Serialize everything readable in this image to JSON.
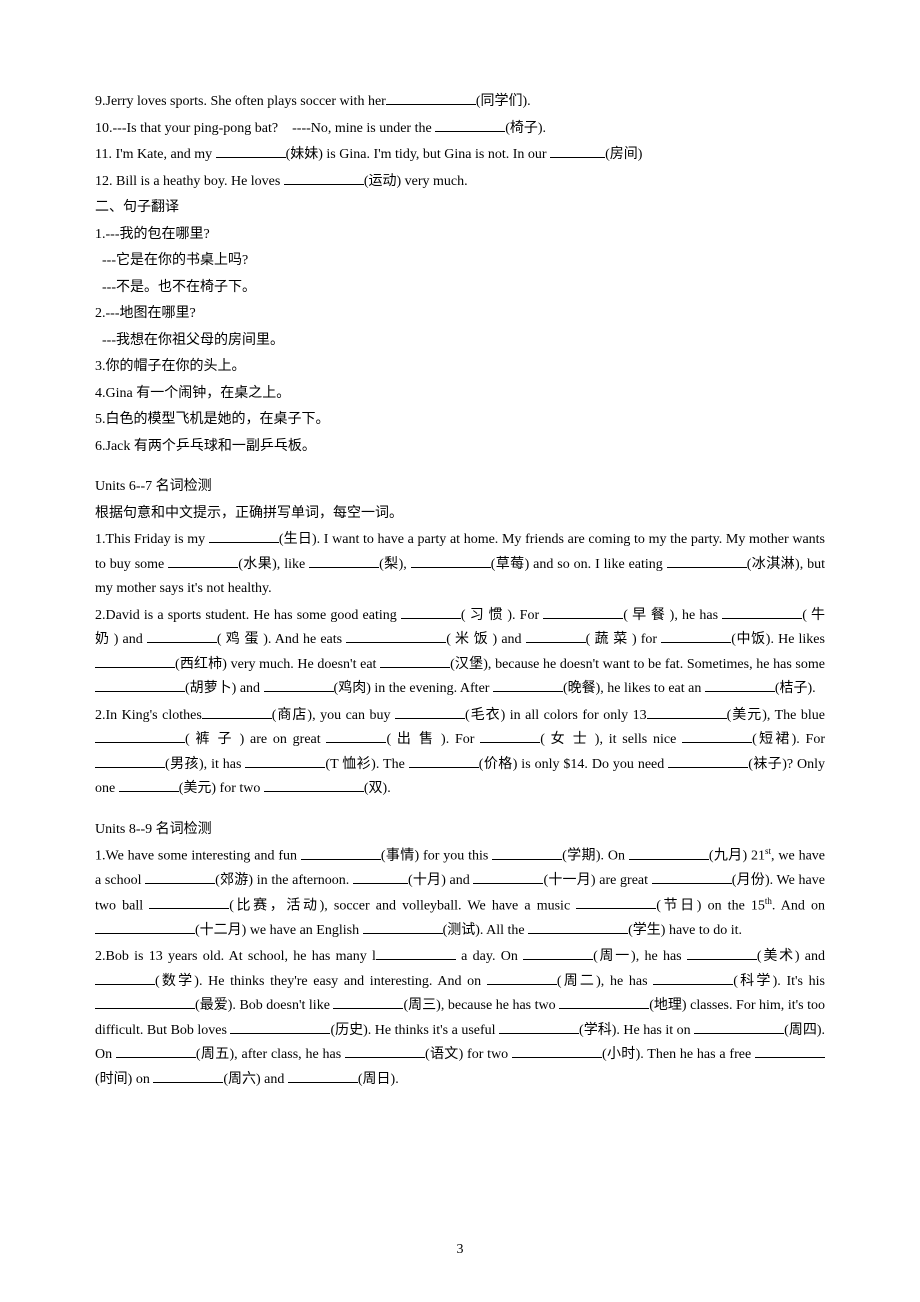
{
  "top": {
    "l9": "9.Jerry loves sports. She often plays soccer with her",
    "l9h": "(同学们).",
    "l10a": "10.---Is that your ping-pong bat?",
    "l10b": "----No, mine is under the ",
    "l10h": "(椅子).",
    "l11a": "11. I'm Kate, and my ",
    "l11b": "(妹妹) is Gina. I'm tidy, but Gina is not. In our ",
    "l11h": "(房间)",
    "l12a": "12. Bill is a heathy boy. He loves ",
    "l12h": "(运动) very much."
  },
  "trans": {
    "title": "二、句子翻译",
    "q1a": "1.---我的包在哪里?",
    "q1b": "---它是在你的书桌上吗?",
    "q1c": "---不是。也不在椅子下。",
    "q2a": "2.---地图在哪里?",
    "q2b": "---我想在你祖父母的房间里。",
    "q3": "3.你的帽子在你的头上。",
    "q4": "4.Gina 有一个闹钟，在桌之上。",
    "q5": "5.白色的模型飞机是她的，在桌子下。",
    "q6": "6.Jack 有两个乒乓球和一副乒乓板。"
  },
  "u67": {
    "title": "Units 6--7 名词检测",
    "instr": "根据句意和中文提示，正确拼写单词，每空一词。",
    "p1a": "1.This Friday is my ",
    "p1b": "(生日). I want to have a party at home. My friends are coming to my the party. My mother wants to buy some ",
    "p1c": "(水果), like ",
    "p1d": "(梨), ",
    "p1e": "(草莓) and so on. I like eating ",
    "p1f": "(冰淇淋), but my mother says it's not healthy.",
    "p2a": "2.David is a sports student. He has some good eating ",
    "p2b": "( 习 惯 ). For ",
    "p2c": "( 早 餐 ), he has ",
    "p2d": "( 牛 奶 ) and ",
    "p2e": "( 鸡 蛋 ). And he eats ",
    "p2f": "( 米 饭 ) and ",
    "p2g": "( 蔬 菜 ) for ",
    "p2h": "(中饭). He likes ",
    "p2i": "(西红柿) very much. He doesn't eat ",
    "p2j": "(汉堡), because he doesn't want to be fat. Sometimes, he has some ",
    "p2k": "(胡萝卜) and ",
    "p2l": "(鸡肉) in the evening. After ",
    "p2m": "(晚餐), he likes to eat an ",
    "p2n": "(桔子).",
    "p3a": "2.In King's clothes",
    "p3b": "(商店), you can buy ",
    "p3c": "(毛衣) in all colors for only 13",
    "p3d": "(美元), The blue",
    "p3e": "( 裤 子 ) are on great ",
    "p3f": "( 出 售 ). For ",
    "p3g": "( 女 士 ), it sells nice ",
    "p3h": "(短裙). For ",
    "p3i": "(男孩), it has ",
    "p3j": "(T 恤衫). The ",
    "p3k": "(价格) is only $14. Do you need ",
    "p3l": "(袜子)? Only one ",
    "p3m": "(美元) for two ",
    "p3n": "(双)."
  },
  "u89": {
    "title": "Units 8--9 名词检测",
    "p1a": "1.We have some interesting and fun ",
    "p1b": "(事情) for you this ",
    "p1c": "(学期). On ",
    "p1d": "(九月) 21",
    "p1dsup": "st",
    "p1e": ", we have a school ",
    "p1f": "(郊游) in the afternoon. ",
    "p1g": "(十月) and ",
    "p1h": "(十一月) are great ",
    "p1i": "(月份). We have two ball ",
    "p1j": "(比赛，活动), soccer and volleyball. We have a music ",
    "p1k": "(节日) on the 15",
    "p1ksup": "th",
    "p1l": ". And on ",
    "p1m": "(十二月) we have an English ",
    "p1n": "(测试). All the ",
    "p1o": "(学生) have to do it.",
    "p2a": "2.Bob is 13 years old. At school, he has many l",
    "p2b": " a day. On ",
    "p2c": "(周一), he has ",
    "p2d": "(美术) and ",
    "p2e": "(数学). He thinks they're easy and interesting. And on ",
    "p2f": "(周二), he has ",
    "p2g": "(科学). It's his ",
    "p2h": "(最爱). Bob doesn't like ",
    "p2i": "(周三), because he has two ",
    "p2j": "(地理) classes. For him, it's too difficult. But Bob loves ",
    "p2k": "(历史). He thinks it's a useful ",
    "p2l": "(学科). He has it on ",
    "p2m": "(周四). On ",
    "p2n": "(周五), after class, he has ",
    "p2o": "(语文) for two ",
    "p2p": "(小时). Then he has a free ",
    "p2q": "(时间) on ",
    "p2r": "(周六) and ",
    "p2s": "(周日)."
  },
  "pageNumber": "3"
}
